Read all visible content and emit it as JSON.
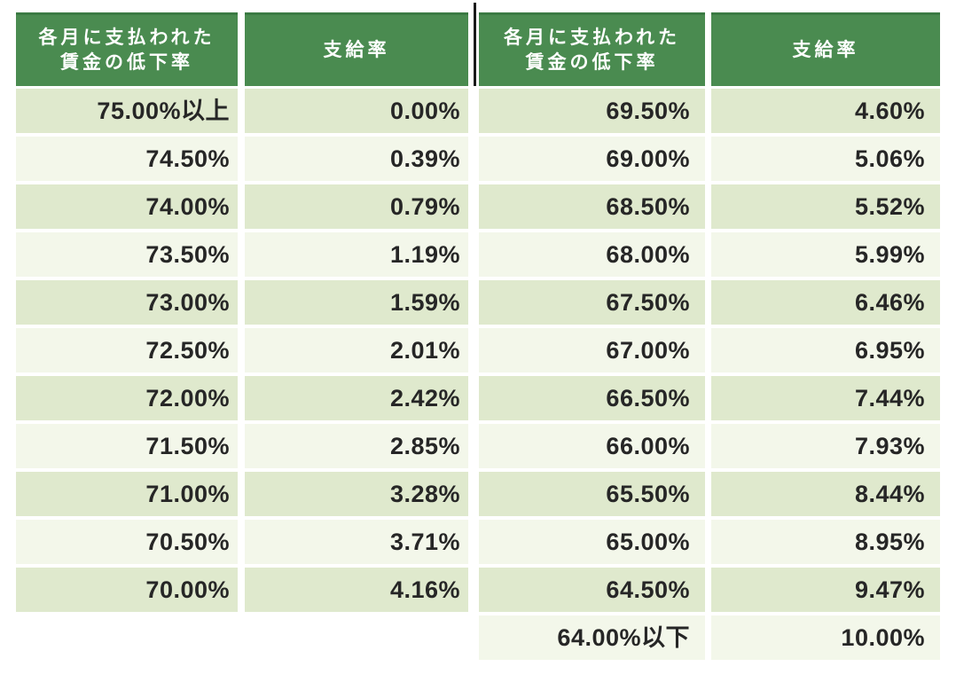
{
  "colors": {
    "header_bg": "#4a8b50",
    "header_top_edge": "#3b7a43",
    "header_text": "#ffffff",
    "row_stripe_green": "#dfe9cd",
    "row_stripe_light": "#f3f7ea",
    "cell_text": "#262626",
    "divider_line": "#1a1a1a",
    "page_bg": "#ffffff"
  },
  "table": {
    "header": {
      "rate_drop_line1": "各月に支払われた",
      "rate_drop_line2": "賃金の低下率",
      "payment": "支給率"
    },
    "left_rows": [
      {
        "drop": "75.00%以上",
        "rate": "0.00%"
      },
      {
        "drop": "74.50%",
        "rate": "0.39%"
      },
      {
        "drop": "74.00%",
        "rate": "0.79%"
      },
      {
        "drop": "73.50%",
        "rate": "1.19%"
      },
      {
        "drop": "73.00%",
        "rate": "1.59%"
      },
      {
        "drop": "72.50%",
        "rate": "2.01%"
      },
      {
        "drop": "72.00%",
        "rate": "2.42%"
      },
      {
        "drop": "71.50%",
        "rate": "2.85%"
      },
      {
        "drop": "71.00%",
        "rate": "3.28%"
      },
      {
        "drop": "70.50%",
        "rate": "3.71%"
      },
      {
        "drop": "70.00%",
        "rate": "4.16%"
      }
    ],
    "right_rows": [
      {
        "drop": "69.50%",
        "rate": "4.60%"
      },
      {
        "drop": "69.00%",
        "rate": "5.06%"
      },
      {
        "drop": "68.50%",
        "rate": "5.52%"
      },
      {
        "drop": "68.00%",
        "rate": "5.99%"
      },
      {
        "drop": "67.50%",
        "rate": "6.46%"
      },
      {
        "drop": "67.00%",
        "rate": "6.95%"
      },
      {
        "drop": "66.50%",
        "rate": "7.44%"
      },
      {
        "drop": "66.00%",
        "rate": "7.93%"
      },
      {
        "drop": "65.50%",
        "rate": "8.44%"
      },
      {
        "drop": "65.00%",
        "rate": "8.95%"
      },
      {
        "drop": "64.50%",
        "rate": "9.47%"
      },
      {
        "drop": "64.00%以下",
        "rate": "10.00%"
      }
    ]
  },
  "chart_data": {
    "type": "table",
    "title": "各月に支払われた賃金の低下率と支給率の対応表",
    "columns": [
      "各月に支払われた賃金の低下率",
      "支給率",
      "各月に支払われた賃金の低下率",
      "支給率"
    ],
    "rows": [
      [
        "75.00%以上",
        "0.00%",
        "69.50%",
        "4.60%"
      ],
      [
        "74.50%",
        "0.39%",
        "69.00%",
        "5.06%"
      ],
      [
        "74.00%",
        "0.79%",
        "68.50%",
        "5.52%"
      ],
      [
        "73.50%",
        "1.19%",
        "68.00%",
        "5.99%"
      ],
      [
        "73.00%",
        "1.59%",
        "67.50%",
        "6.46%"
      ],
      [
        "72.50%",
        "2.01%",
        "67.00%",
        "6.95%"
      ],
      [
        "72.00%",
        "2.42%",
        "66.50%",
        "7.44%"
      ],
      [
        "71.50%",
        "2.85%",
        "66.00%",
        "7.93%"
      ],
      [
        "71.00%",
        "3.28%",
        "65.50%",
        "8.44%"
      ],
      [
        "70.50%",
        "3.71%",
        "65.00%",
        "8.95%"
      ],
      [
        "70.00%",
        "4.16%",
        "64.50%",
        "9.47%"
      ],
      [
        "",
        "",
        "64.00%以下",
        "10.00%"
      ]
    ],
    "layout": {
      "striped_rows": true,
      "header_background": "#4a8b50",
      "numeric_alignment": "right"
    }
  }
}
